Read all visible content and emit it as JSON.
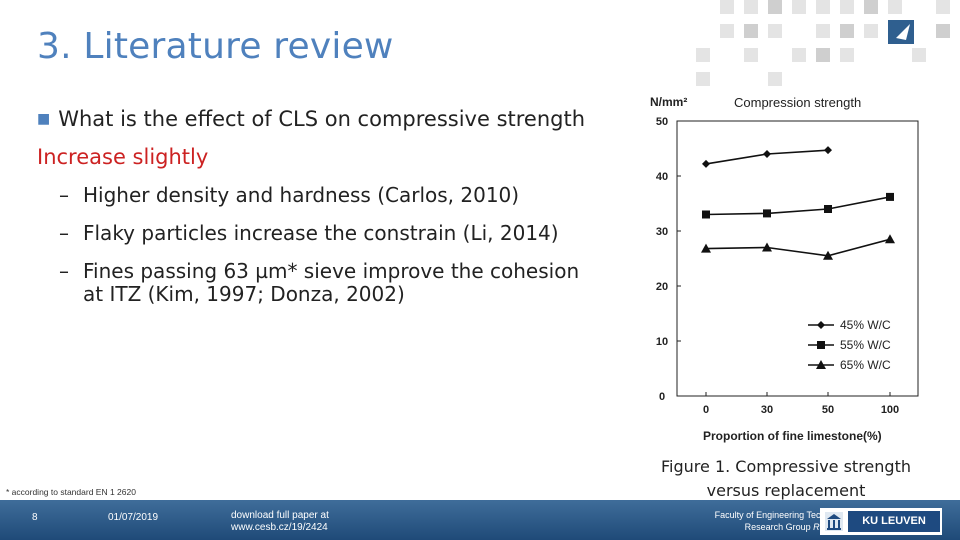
{
  "slide": {
    "title": "3. Literature review",
    "bullet": "What is the effect of CLS on compressive strength",
    "answer": "Increase slightly",
    "sub_items": [
      "Higher density and hardness (Carlos, 2010)",
      "Flaky particles increase the constrain (Li, 2014)",
      "Fines passing 63 µm* sieve improve the cohesion"
    ],
    "sub_item_continuation": "at ITZ (Kim, 1997; Donza, 2002)",
    "dash": "–",
    "bullet_marker": "■"
  },
  "caption": {
    "line1": "Figure 1. Compressive strength",
    "line2": "versus replacement"
  },
  "footnote": "* according to standard EN 1 2620",
  "footer": {
    "page_number": "8",
    "date": "01/07/2019",
    "download_line1": "download full paper at",
    "download_line2": "www.cesb.cz/19/2424",
    "faculty_line1": "Faculty of Engineering Technology",
    "faculty_line2_prefix": "Research Group ",
    "faculty_line2_group": "Recy.Con",
    "logo_text": "KU LEUVEN",
    "background_color": "#2a5a8a"
  },
  "colors": {
    "title": "#4f81bd",
    "answer": "#cc2222"
  },
  "chart_data": {
    "type": "line",
    "title": "Compression strength",
    "ylabel": "N/mm²",
    "xlabel": "Proportion of fine limestone(%)",
    "categories": [
      "0",
      "30",
      "50",
      "100"
    ],
    "y_ticks": [
      "0",
      "10",
      "20",
      "30",
      "40",
      "50"
    ],
    "ylim": [
      0,
      50
    ],
    "grid": false,
    "legend_position": "bottom-right",
    "series": [
      {
        "name": "45% W/C",
        "marker": "diamond",
        "values": [
          42.2,
          44.0,
          44.7,
          null
        ]
      },
      {
        "name": "55% W/C",
        "marker": "square",
        "values": [
          33.0,
          33.2,
          34.0,
          36.2
        ]
      },
      {
        "name": "65% W/C",
        "marker": "triangle",
        "values": [
          26.8,
          27.0,
          25.5,
          28.5
        ]
      }
    ]
  }
}
